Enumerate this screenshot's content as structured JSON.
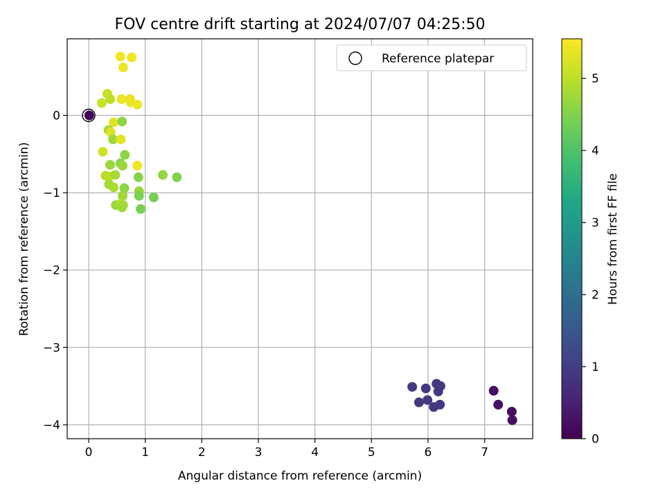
{
  "chart_data": {
    "type": "scatter",
    "title": "FOV centre drift starting at 2024/07/07 04:25:50",
    "xlabel": "Angular distance from reference (arcmin)",
    "ylabel": "Rotation from reference (arcmin)",
    "xlim": [
      -0.38,
      7.85
    ],
    "ylim": [
      -4.18,
      0.99
    ],
    "xticks": [
      0,
      1,
      2,
      3,
      4,
      5,
      6,
      7
    ],
    "yticks": [
      0,
      -1,
      -2,
      -3,
      -4
    ],
    "xtick_labels": [
      "0",
      "1",
      "2",
      "3",
      "4",
      "5",
      "6",
      "7"
    ],
    "ytick_labels": [
      "0",
      "−1",
      "−2",
      "−3",
      "−4"
    ],
    "grid": true,
    "legend": {
      "placement": "top-right",
      "entries": [
        "Reference platepar"
      ]
    },
    "reference_point": {
      "x": 0,
      "y": 0
    },
    "colorbar": {
      "label": "Hours from first FF file",
      "range": [
        0,
        5.55
      ],
      "ticks": [
        0,
        1,
        2,
        3,
        4,
        5
      ],
      "tick_labels": [
        "0",
        "1",
        "2",
        "3",
        "4",
        "5"
      ],
      "colormap": "viridis"
    },
    "points": [
      {
        "x": 0.01,
        "y": 0.0,
        "c": 0.05
      },
      {
        "x": 7.16,
        "y": -3.56,
        "c": 0.2
      },
      {
        "x": 7.24,
        "y": -3.74,
        "c": 0.25
      },
      {
        "x": 7.48,
        "y": -3.83,
        "c": 0.22
      },
      {
        "x": 7.49,
        "y": -3.94,
        "c": 0.2
      },
      {
        "x": 5.72,
        "y": -3.51,
        "c": 0.95
      },
      {
        "x": 5.96,
        "y": -3.53,
        "c": 0.9
      },
      {
        "x": 5.84,
        "y": -3.71,
        "c": 0.9
      },
      {
        "x": 5.99,
        "y": -3.68,
        "c": 0.95
      },
      {
        "x": 6.15,
        "y": -3.47,
        "c": 0.9
      },
      {
        "x": 6.22,
        "y": -3.5,
        "c": 0.95
      },
      {
        "x": 6.18,
        "y": -3.57,
        "c": 0.9
      },
      {
        "x": 6.1,
        "y": -3.77,
        "c": 0.9
      },
      {
        "x": 6.21,
        "y": -3.74,
        "c": 0.92
      },
      {
        "x": 0.56,
        "y": 0.76,
        "c": 5.45
      },
      {
        "x": 0.76,
        "y": 0.75,
        "c": 5.45
      },
      {
        "x": 0.61,
        "y": 0.62,
        "c": 5.4
      },
      {
        "x": 0.33,
        "y": 0.28,
        "c": 5.1
      },
      {
        "x": 0.23,
        "y": 0.16,
        "c": 5.1
      },
      {
        "x": 0.38,
        "y": 0.21,
        "c": 5.0
      },
      {
        "x": 0.58,
        "y": 0.21,
        "c": 5.4
      },
      {
        "x": 0.73,
        "y": 0.21,
        "c": 5.35
      },
      {
        "x": 0.74,
        "y": 0.17,
        "c": 5.4
      },
      {
        "x": 0.86,
        "y": 0.14,
        "c": 5.45
      },
      {
        "x": 0.44,
        "y": -0.09,
        "c": 5.3
      },
      {
        "x": 0.59,
        "y": -0.08,
        "c": 4.6
      },
      {
        "x": 0.35,
        "y": -0.19,
        "c": 4.8
      },
      {
        "x": 0.39,
        "y": -0.22,
        "c": 5.3
      },
      {
        "x": 0.43,
        "y": -0.31,
        "c": 4.75
      },
      {
        "x": 0.57,
        "y": -0.31,
        "c": 5.35
      },
      {
        "x": 0.25,
        "y": -0.47,
        "c": 5.15
      },
      {
        "x": 0.64,
        "y": -0.51,
        "c": 4.6
      },
      {
        "x": 0.38,
        "y": -0.64,
        "c": 4.7
      },
      {
        "x": 0.56,
        "y": -0.62,
        "c": 4.55
      },
      {
        "x": 0.6,
        "y": -0.65,
        "c": 4.7
      },
      {
        "x": 0.86,
        "y": -0.65,
        "c": 5.45
      },
      {
        "x": 1.31,
        "y": -0.77,
        "c": 4.65
      },
      {
        "x": 1.56,
        "y": -0.8,
        "c": 4.5
      },
      {
        "x": 0.3,
        "y": -0.78,
        "c": 4.95
      },
      {
        "x": 0.36,
        "y": -0.79,
        "c": 5.0
      },
      {
        "x": 0.47,
        "y": -0.77,
        "c": 4.8
      },
      {
        "x": 0.88,
        "y": -0.8,
        "c": 4.55
      },
      {
        "x": 0.36,
        "y": -0.89,
        "c": 4.8
      },
      {
        "x": 0.44,
        "y": -0.93,
        "c": 4.85
      },
      {
        "x": 0.63,
        "y": -0.94,
        "c": 4.6
      },
      {
        "x": 0.89,
        "y": -0.98,
        "c": 4.7
      },
      {
        "x": 0.89,
        "y": -1.04,
        "c": 4.45
      },
      {
        "x": 0.6,
        "y": -1.04,
        "c": 4.75
      },
      {
        "x": 1.15,
        "y": -1.06,
        "c": 4.4
      },
      {
        "x": 0.48,
        "y": -1.16,
        "c": 4.7
      },
      {
        "x": 0.57,
        "y": -1.14,
        "c": 4.9
      },
      {
        "x": 0.61,
        "y": -1.16,
        "c": 4.8
      },
      {
        "x": 0.59,
        "y": -1.19,
        "c": 4.75
      },
      {
        "x": 0.92,
        "y": -1.21,
        "c": 4.4
      }
    ]
  }
}
